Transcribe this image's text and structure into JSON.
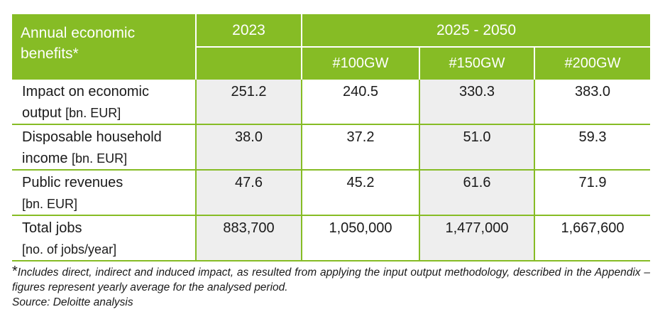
{
  "header": {
    "label_line1": "Annual economic",
    "label_line2": "benefits*",
    "year": "2023",
    "period": "2025 - 2050",
    "scenarios": [
      "#100GW",
      "#150GW",
      "#200GW"
    ]
  },
  "rows": [
    {
      "name_line1": "Impact on economic",
      "name_line2": "output",
      "unit": "[bn. EUR]",
      "values": [
        "251.2",
        "240.5",
        "330.3",
        "383.0"
      ]
    },
    {
      "name_line1": "Disposable household",
      "name_line2": "income",
      "unit": "[bn. EUR]",
      "values": [
        "38.0",
        "37.2",
        "51.0",
        "59.3"
      ]
    },
    {
      "name_line1": "Public revenues",
      "name_line2": "",
      "unit": "[bn. EUR]",
      "values": [
        "47.6",
        "45.2",
        "61.6",
        "71.9"
      ]
    },
    {
      "name_line1": "Total jobs",
      "name_line2": "",
      "unit": "[no. of jobs/year]",
      "values": [
        "883,700",
        "1,050,000",
        "1,477,000",
        "1,667,600"
      ]
    }
  ],
  "notes": {
    "star": "*",
    "footnote": "Includes direct, indirect and induced impact, as resulted from applying the input output methodology, described in the Appendix – figures represent yearly average for the analysed period.",
    "source": "Source: Deloitte analysis"
  },
  "colors": {
    "header_green": "#86bc25",
    "shade": "#eeeeee"
  }
}
